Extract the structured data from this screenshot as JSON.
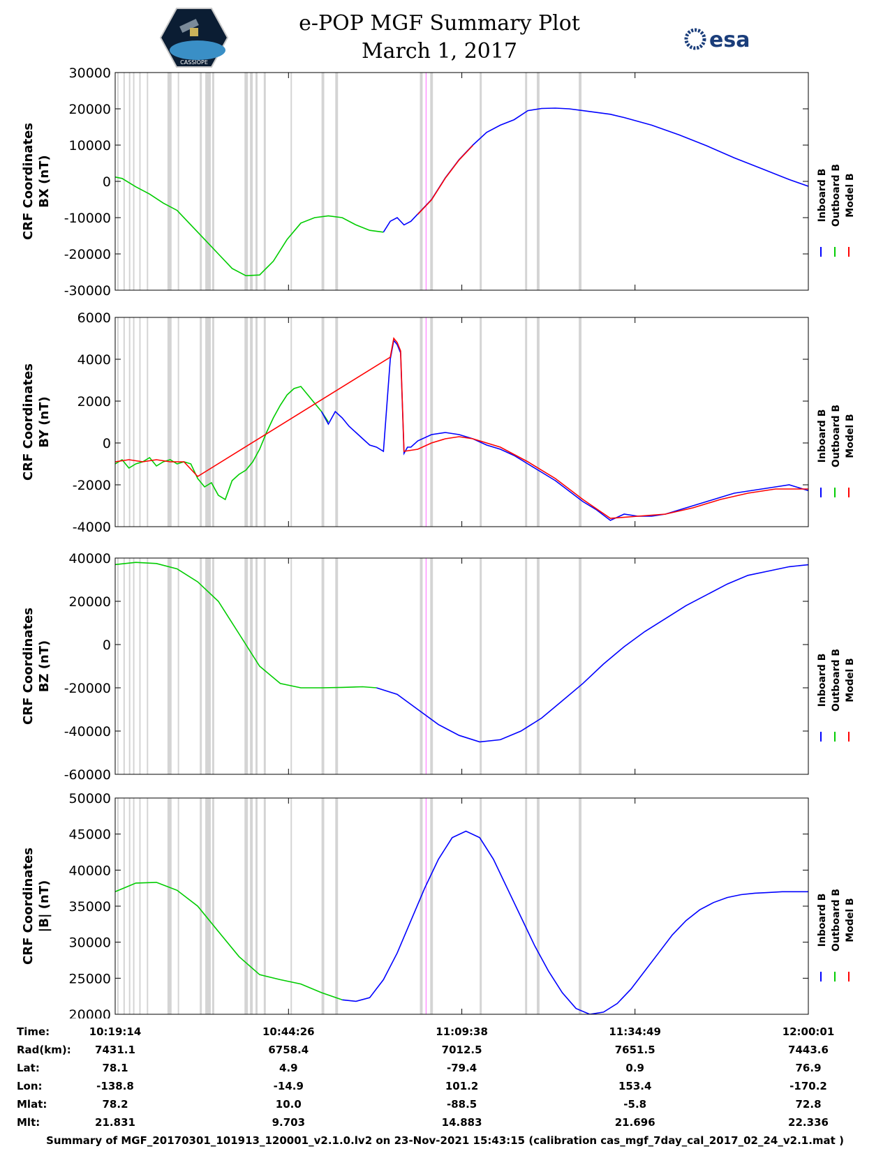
{
  "header": {
    "title_line1": "e-POP MGF Summary Plot",
    "title_line2": "March 1, 2017",
    "logo_left_text": "CASSIOPE",
    "logo_right_text": "esa"
  },
  "colors": {
    "inboard": "#0000ff",
    "outboard": "#00cc00",
    "model": "#ff0000",
    "gap_band": "#d4d4d4",
    "event_line": "#ff66ff"
  },
  "chart_data": [
    {
      "type": "line",
      "ylabel": [
        "CRF Coordinates",
        "BX (nT)"
      ],
      "ylim": [
        -30000,
        30000
      ],
      "yticks": [
        -30000,
        -20000,
        -10000,
        0,
        10000,
        20000,
        30000
      ],
      "legend": [
        "Inboard B",
        "Outboard B",
        "Model B"
      ],
      "x_minutes": [
        0,
        2,
        4,
        7,
        9,
        12,
        15,
        17,
        20,
        23,
        25,
        28,
        30,
        33,
        36,
        38,
        40,
        43,
        45,
        48,
        50,
        53,
        56,
        58,
        61,
        64,
        66,
        68,
        70,
        72,
        74,
        76,
        78,
        80,
        82,
        86,
        90,
        94,
        98,
        101
      ],
      "series": [
        {
          "name": "Outboard B",
          "x_minutes": [
            0,
            1,
            3,
            5,
            7,
            9,
            11,
            13,
            15,
            17,
            19,
            21,
            23,
            25,
            27,
            29,
            31,
            33,
            35,
            37,
            39
          ],
          "values": [
            1200,
            800,
            -1500,
            -3500,
            -6000,
            -8000,
            -12000,
            -16000,
            -20000,
            -24000,
            -26000,
            -25800,
            -22000,
            -16000,
            -11500,
            -10000,
            -9500,
            -10000,
            -12000,
            -13500,
            -14000
          ]
        },
        {
          "name": "Inboard B",
          "x_minutes": [
            39,
            40,
            41,
            42,
            43,
            44,
            46,
            48,
            50,
            52,
            54,
            56,
            58,
            60,
            62,
            64,
            66,
            68,
            70,
            72,
            74,
            78,
            82,
            86,
            90,
            94,
            98,
            101
          ],
          "values": [
            -14000,
            -11000,
            -10000,
            -12000,
            -11000,
            -9000,
            -5000,
            1000,
            6000,
            10000,
            13500,
            15500,
            17000,
            19500,
            20100,
            20200,
            20000,
            19500,
            19000,
            18500,
            17600,
            15500,
            12800,
            9800,
            6500,
            3500,
            500,
            -1500
          ]
        },
        {
          "name": "Model B",
          "x_minutes": [
            44,
            46,
            48,
            50,
            52
          ],
          "values": [
            -9100,
            -5100,
            900,
            5900,
            9900
          ]
        }
      ]
    },
    {
      "type": "line",
      "ylabel": [
        "CRF Coordinates",
        "BY (nT)"
      ],
      "ylim": [
        -4000,
        6000
      ],
      "yticks": [
        -4000,
        -2000,
        0,
        2000,
        4000,
        6000
      ],
      "legend": [
        "Inboard B",
        "Outboard B",
        "Model B"
      ],
      "series": [
        {
          "name": "Outboard B",
          "x_minutes": [
            0,
            1,
            2,
            3,
            4,
            5,
            6,
            7,
            8,
            9,
            10,
            11,
            12,
            13,
            14,
            15,
            16,
            17,
            18,
            19,
            20,
            21,
            22,
            23,
            24,
            25,
            26,
            27,
            28,
            29,
            30,
            31
          ],
          "values": [
            -1000,
            -800,
            -1200,
            -1000,
            -900,
            -700,
            -1100,
            -900,
            -800,
            -1000,
            -900,
            -1000,
            -1700,
            -2100,
            -1900,
            -2500,
            -2700,
            -1800,
            -1500,
            -1300,
            -900,
            -300,
            500,
            1200,
            1800,
            2300,
            2600,
            2700,
            2300,
            1900,
            1500,
            1000
          ]
        },
        {
          "name": "Inboard B",
          "x_minutes": [
            30,
            31,
            32,
            33,
            34,
            35,
            36,
            37,
            38,
            39,
            40,
            40.5,
            41,
            41.5,
            42,
            42.5,
            43,
            44,
            46,
            48,
            50,
            52,
            54,
            56,
            58,
            60,
            62,
            64,
            66,
            68,
            70,
            72,
            74,
            76,
            78,
            80,
            82,
            84,
            86,
            88,
            90,
            92,
            94,
            96,
            98,
            101
          ],
          "values": [
            1500,
            900,
            1500,
            1200,
            800,
            500,
            200,
            -100,
            -200,
            -400,
            4000,
            4900,
            4700,
            4300,
            -500,
            -200,
            -200,
            100,
            400,
            500,
            400,
            200,
            -100,
            -300,
            -600,
            -1000,
            -1400,
            -1800,
            -2300,
            -2800,
            -3200,
            -3700,
            -3400,
            -3500,
            -3500,
            -3400,
            -3200,
            -3000,
            -2800,
            -2600,
            -2400,
            -2300,
            -2200,
            -2100,
            -2000,
            -2300
          ]
        },
        {
          "name": "Model B",
          "x_minutes": [
            0,
            2,
            4,
            6,
            8,
            10,
            12,
            40,
            40.5,
            41,
            41.5,
            42,
            44,
            46,
            48,
            50,
            52,
            56,
            60,
            64,
            68,
            72,
            76,
            80,
            84,
            88,
            92,
            96,
            101
          ],
          "values": [
            -900,
            -800,
            -900,
            -800,
            -900,
            -900,
            -1600,
            4100,
            5000,
            4800,
            4400,
            -400,
            -300,
            0,
            200,
            300,
            200,
            -200,
            -900,
            -1700,
            -2700,
            -3600,
            -3500,
            -3400,
            -3100,
            -2700,
            -2400,
            -2200,
            -2200
          ]
        }
      ]
    },
    {
      "type": "line",
      "ylabel": [
        "CRF Coordinates",
        "BZ (nT)"
      ],
      "ylim": [
        -60000,
        40000
      ],
      "yticks": [
        -60000,
        -40000,
        -20000,
        0,
        20000,
        40000
      ],
      "legend": [
        "Inboard B",
        "Outboard B",
        "Model B"
      ],
      "series": [
        {
          "name": "Outboard B",
          "x_minutes": [
            0,
            3,
            6,
            9,
            12,
            15,
            18,
            21,
            24,
            27,
            30,
            33,
            36,
            38
          ],
          "values": [
            37000,
            38000,
            37500,
            35000,
            29000,
            20000,
            5000,
            -10000,
            -18000,
            -20000,
            -20000,
            -19800,
            -19500,
            -20000
          ]
        },
        {
          "name": "Inboard B",
          "x_minutes": [
            38,
            41,
            44,
            47,
            50,
            53,
            56,
            59,
            62,
            65,
            68,
            71,
            74,
            77,
            80,
            83,
            86,
            89,
            92,
            95,
            98,
            101
          ],
          "values": [
            -20000,
            -23000,
            -30000,
            -37000,
            -42000,
            -45000,
            -44000,
            -40000,
            -34000,
            -26000,
            -18000,
            -9000,
            -1000,
            6000,
            12000,
            18000,
            23000,
            28000,
            32000,
            34000,
            36000,
            37000
          ]
        }
      ]
    },
    {
      "type": "line",
      "ylabel": [
        "CRF Coordinates",
        "|B| (nT)"
      ],
      "ylim": [
        20000,
        50000
      ],
      "yticks": [
        20000,
        25000,
        30000,
        35000,
        40000,
        45000,
        50000
      ],
      "legend": [
        "Inboard B",
        "Outboard B",
        "Model B"
      ],
      "series": [
        {
          "name": "Outboard B",
          "x_minutes": [
            0,
            3,
            6,
            9,
            12,
            15,
            18,
            21,
            24,
            27,
            30,
            33
          ],
          "values": [
            37000,
            38200,
            38300,
            37200,
            35000,
            31500,
            28000,
            25500,
            24800,
            24200,
            23000,
            22000
          ]
        },
        {
          "name": "Inboard B",
          "x_minutes": [
            33,
            35,
            37,
            39,
            41,
            43,
            45,
            47,
            49,
            51,
            53,
            55,
            57,
            59,
            61,
            63,
            65,
            67,
            69,
            71,
            73,
            75,
            77,
            79,
            81,
            83,
            85,
            87,
            89,
            91,
            93,
            95,
            97,
            99,
            101
          ],
          "values": [
            22000,
            21800,
            22300,
            24800,
            28500,
            33000,
            37500,
            41500,
            44500,
            45400,
            44500,
            41500,
            37500,
            33500,
            29500,
            26000,
            23000,
            20800,
            20000,
            20300,
            21500,
            23500,
            26000,
            28500,
            31000,
            33000,
            34500,
            35500,
            36200,
            36600,
            36800,
            36900,
            37000,
            37000,
            37000
          ]
        }
      ]
    }
  ],
  "gap_bands_minutes": [
    [
      0.3,
      0.5
    ],
    [
      1.2,
      1.4
    ],
    [
      2.0,
      2.2
    ],
    [
      2.6,
      2.8
    ],
    [
      3.5,
      3.7
    ],
    [
      4.6,
      4.8
    ],
    [
      7.6,
      8.2
    ],
    [
      9.1,
      9.3
    ],
    [
      12.3,
      12.6
    ],
    [
      13.1,
      13.9
    ],
    [
      14.1,
      14.4
    ],
    [
      18.8,
      19.3
    ],
    [
      19.6,
      20.0
    ],
    [
      20.4,
      20.7
    ],
    [
      21.6,
      21.9
    ],
    [
      25.5,
      25.7
    ],
    [
      30.0,
      30.4
    ],
    [
      32.0,
      32.4
    ],
    [
      44.3,
      44.7
    ],
    [
      45.8,
      46.2
    ],
    [
      53.0,
      53.3
    ],
    [
      59.6,
      59.9
    ],
    [
      61.3,
      61.7
    ],
    [
      67.4,
      67.8
    ]
  ],
  "x_axis": {
    "range_minutes": [
      0,
      100.78
    ],
    "tick_minutes": [
      0,
      25.2,
      50.4,
      75.58,
      100.78
    ]
  },
  "info_table": {
    "labels": [
      "Time:",
      "Rad(km):",
      "Lat:",
      "Lon:",
      "Mlat:",
      "Mlt:"
    ],
    "columns": [
      [
        "10:19:14",
        "7431.1",
        "78.1",
        "-138.8",
        "78.2",
        "21.831"
      ],
      [
        "10:44:26",
        "6758.4",
        "4.9",
        "-14.9",
        "10.0",
        "9.703"
      ],
      [
        "11:09:38",
        "7012.5",
        "-79.4",
        "101.2",
        "-88.5",
        "14.883"
      ],
      [
        "11:34:49",
        "7651.5",
        "0.9",
        "153.4",
        "-5.8",
        "21.696"
      ],
      [
        "12:00:01",
        "7443.6",
        "76.9",
        "-170.2",
        "72.8",
        "22.336"
      ]
    ]
  },
  "footer": "Summary of MGF_20170301_101913_120001_v2.1.0.lv2 on 23-Nov-2021 15:43:15 (calibration cas_mgf_7day_cal_2017_02_24_v2.1.mat )"
}
